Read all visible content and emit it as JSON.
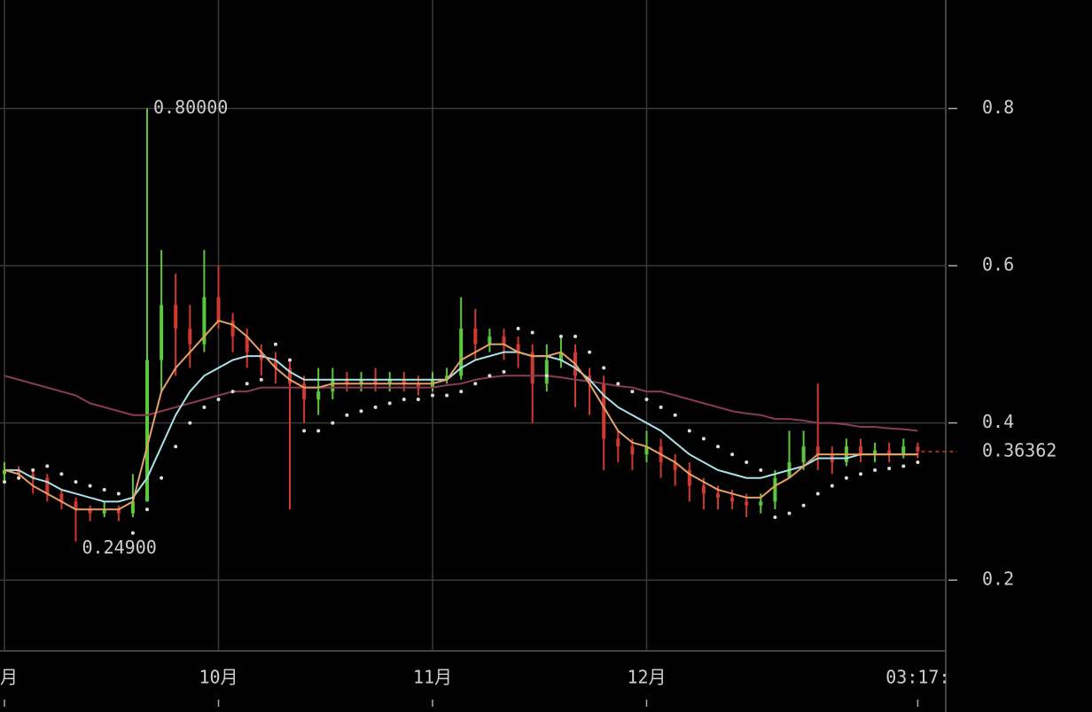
{
  "chart_data": {
    "type": "candlestick",
    "categories": [
      "月",
      null,
      null,
      null,
      null,
      null,
      null,
      null,
      null,
      null,
      null,
      null,
      null,
      null,
      null,
      "10月",
      null,
      null,
      null,
      null,
      null,
      null,
      null,
      null,
      null,
      null,
      null,
      null,
      null,
      null,
      "11月",
      null,
      null,
      null,
      null,
      null,
      null,
      null,
      null,
      null,
      null,
      null,
      null,
      null,
      null,
      "12月",
      null,
      null,
      null,
      null,
      null,
      null,
      null,
      null,
      null,
      null,
      null,
      null,
      null,
      null,
      null,
      null,
      null,
      null,
      "03:17:"
    ],
    "open": [
      0.335,
      0.34,
      0.335,
      0.33,
      0.31,
      0.3,
      0.29,
      0.285,
      0.29,
      0.285,
      0.3,
      0.48,
      0.55,
      0.52,
      0.5,
      0.56,
      0.53,
      0.51,
      0.49,
      0.48,
      0.47,
      0.45,
      0.43,
      0.44,
      0.455,
      0.45,
      0.455,
      0.45,
      0.455,
      0.45,
      0.445,
      0.455,
      0.46,
      0.52,
      0.5,
      0.51,
      0.5,
      0.49,
      0.45,
      0.48,
      0.49,
      0.46,
      0.45,
      0.38,
      0.37,
      0.36,
      0.37,
      0.35,
      0.34,
      0.32,
      0.31,
      0.305,
      0.3,
      0.295,
      0.3,
      0.33,
      0.35,
      0.37,
      0.36,
      0.35,
      0.37,
      0.36,
      0.365,
      0.36,
      0.37
    ],
    "high": [
      0.35,
      0.345,
      0.34,
      0.335,
      0.315,
      0.305,
      0.295,
      0.3,
      0.295,
      0.335,
      0.8,
      0.62,
      0.59,
      0.55,
      0.62,
      0.6,
      0.54,
      0.52,
      0.5,
      0.49,
      0.48,
      0.46,
      0.47,
      0.47,
      0.465,
      0.465,
      0.47,
      0.465,
      0.465,
      0.46,
      0.465,
      0.47,
      0.56,
      0.545,
      0.52,
      0.52,
      0.51,
      0.5,
      0.5,
      0.51,
      0.5,
      0.47,
      0.46,
      0.39,
      0.38,
      0.39,
      0.38,
      0.36,
      0.35,
      0.33,
      0.32,
      0.315,
      0.31,
      0.31,
      0.34,
      0.39,
      0.39,
      0.45,
      0.37,
      0.38,
      0.38,
      0.375,
      0.375,
      0.38,
      0.375
    ],
    "low": [
      0.325,
      0.33,
      0.31,
      0.3,
      0.29,
      0.249,
      0.275,
      0.28,
      0.275,
      0.28,
      0.3,
      0.44,
      0.46,
      0.47,
      0.49,
      0.52,
      0.49,
      0.47,
      0.46,
      0.45,
      0.29,
      0.4,
      0.41,
      0.43,
      0.44,
      0.44,
      0.44,
      0.44,
      0.44,
      0.435,
      0.44,
      0.45,
      0.455,
      0.48,
      0.49,
      0.48,
      0.47,
      0.4,
      0.44,
      0.47,
      0.42,
      0.41,
      0.34,
      0.35,
      0.34,
      0.35,
      0.33,
      0.32,
      0.3,
      0.29,
      0.29,
      0.29,
      0.28,
      0.285,
      0.29,
      0.33,
      0.34,
      0.34,
      0.335,
      0.345,
      0.35,
      0.35,
      0.35,
      0.355,
      0.355
    ],
    "close": [
      0.34,
      0.335,
      0.33,
      0.31,
      0.3,
      0.29,
      0.285,
      0.29,
      0.285,
      0.3,
      0.48,
      0.55,
      0.52,
      0.5,
      0.56,
      0.53,
      0.51,
      0.49,
      0.48,
      0.47,
      0.45,
      0.43,
      0.44,
      0.455,
      0.45,
      0.455,
      0.45,
      0.455,
      0.45,
      0.445,
      0.455,
      0.46,
      0.52,
      0.5,
      0.51,
      0.5,
      0.49,
      0.45,
      0.48,
      0.49,
      0.46,
      0.45,
      0.38,
      0.37,
      0.36,
      0.37,
      0.35,
      0.34,
      0.32,
      0.31,
      0.305,
      0.3,
      0.295,
      0.3,
      0.33,
      0.35,
      0.37,
      0.36,
      0.35,
      0.37,
      0.36,
      0.365,
      0.36,
      0.37,
      0.36362
    ],
    "up_color": "#5cc83c",
    "down_color": "#d0392b",
    "lines": [
      {
        "color": "#8c3a55",
        "style": "line",
        "values": [
          0.46,
          0.455,
          0.45,
          0.445,
          0.44,
          0.435,
          0.425,
          0.42,
          0.415,
          0.41,
          0.41,
          0.415,
          0.42,
          0.425,
          0.43,
          0.435,
          0.44,
          0.44,
          0.445,
          0.445,
          0.445,
          0.445,
          0.445,
          0.445,
          0.445,
          0.445,
          0.445,
          0.445,
          0.445,
          0.445,
          0.445,
          0.448,
          0.45,
          0.455,
          0.458,
          0.46,
          0.46,
          0.46,
          0.46,
          0.458,
          0.455,
          0.453,
          0.45,
          0.447,
          0.445,
          0.44,
          0.44,
          0.435,
          0.43,
          0.425,
          0.42,
          0.415,
          0.412,
          0.41,
          0.405,
          0.405,
          0.403,
          0.4,
          0.4,
          0.398,
          0.395,
          0.395,
          0.393,
          0.392,
          0.39
        ]
      },
      {
        "color": "#a8e2ea",
        "style": "line",
        "values": [
          0.34,
          0.34,
          0.33,
          0.325,
          0.315,
          0.31,
          0.305,
          0.3,
          0.3,
          0.305,
          0.33,
          0.37,
          0.41,
          0.44,
          0.46,
          0.47,
          0.48,
          0.485,
          0.485,
          0.48,
          0.465,
          0.455,
          0.455,
          0.455,
          0.455,
          0.455,
          0.455,
          0.455,
          0.455,
          0.455,
          0.455,
          0.455,
          0.47,
          0.48,
          0.485,
          0.49,
          0.49,
          0.485,
          0.485,
          0.48,
          0.47,
          0.455,
          0.435,
          0.42,
          0.41,
          0.4,
          0.39,
          0.375,
          0.36,
          0.35,
          0.34,
          0.335,
          0.33,
          0.33,
          0.335,
          0.34,
          0.345,
          0.355,
          0.355,
          0.355,
          0.36,
          0.36,
          0.36,
          0.36,
          0.36
        ]
      },
      {
        "color": "#e6a064",
        "style": "line",
        "values": [
          0.34,
          0.335,
          0.32,
          0.31,
          0.3,
          0.29,
          0.29,
          0.29,
          0.29,
          0.3,
          0.37,
          0.44,
          0.47,
          0.49,
          0.51,
          0.53,
          0.525,
          0.51,
          0.49,
          0.47,
          0.455,
          0.445,
          0.445,
          0.45,
          0.45,
          0.45,
          0.45,
          0.45,
          0.45,
          0.45,
          0.45,
          0.455,
          0.48,
          0.49,
          0.5,
          0.5,
          0.49,
          0.485,
          0.485,
          0.49,
          0.475,
          0.45,
          0.42,
          0.39,
          0.375,
          0.37,
          0.36,
          0.35,
          0.335,
          0.325,
          0.315,
          0.31,
          0.305,
          0.305,
          0.32,
          0.33,
          0.345,
          0.36,
          0.36,
          0.36,
          0.36,
          0.36,
          0.36,
          0.36,
          0.36
        ]
      },
      {
        "color": "#dddddd",
        "style": "dots",
        "values": [
          0.325,
          0.33,
          0.34,
          0.345,
          0.335,
          0.325,
          0.32,
          0.315,
          0.31,
          0.26,
          0.29,
          0.33,
          0.37,
          0.4,
          0.42,
          0.43,
          0.44,
          0.45,
          0.455,
          0.5,
          0.48,
          0.39,
          0.39,
          0.4,
          0.41,
          0.415,
          0.42,
          0.425,
          0.43,
          0.43,
          0.435,
          0.435,
          0.44,
          0.45,
          0.46,
          0.465,
          0.52,
          0.515,
          0.46,
          0.51,
          0.51,
          0.49,
          0.47,
          0.45,
          0.44,
          0.43,
          0.42,
          0.41,
          0.39,
          0.38,
          0.37,
          0.36,
          0.35,
          0.34,
          0.28,
          0.285,
          0.295,
          0.31,
          0.32,
          0.33,
          0.335,
          0.34,
          0.342,
          0.345,
          0.35
        ]
      }
    ],
    "ylim": [
      0.11,
      0.938
    ],
    "yticks": [
      0.2,
      0.4,
      0.6,
      0.8
    ],
    "grid": true,
    "max_label": {
      "value": 0.8,
      "label": "0.80000"
    },
    "min_label": {
      "value": 0.249,
      "label": "0.24900"
    },
    "last_price": 0.36362
  }
}
